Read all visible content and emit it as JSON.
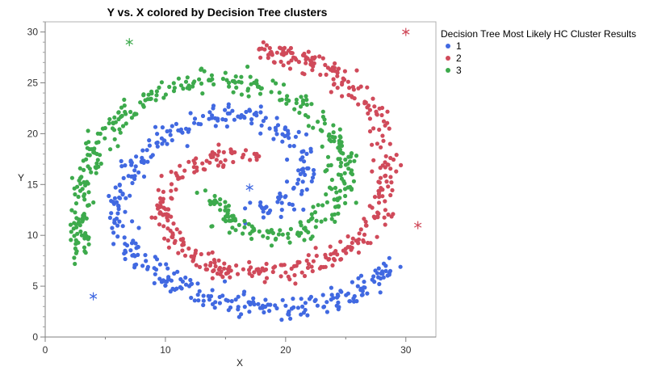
{
  "chart_data": {
    "type": "scatter",
    "title": "Y vs. X colored by Decision Tree clusters",
    "xlabel": "X",
    "ylabel": "Y",
    "xlim": [
      0,
      32.5
    ],
    "ylim": [
      0,
      31
    ],
    "x_ticks": [
      0,
      10,
      20,
      30
    ],
    "y_ticks": [
      0,
      5,
      10,
      15,
      20,
      25,
      30
    ],
    "grid": false,
    "legend": {
      "title": "Decision Tree Most Likely HC Cluster Results",
      "placement": "top-right",
      "entries": [
        "1",
        "2",
        "3"
      ]
    },
    "series": [
      {
        "name": "1",
        "color": "#4169E1",
        "marker": "dot",
        "spiral_path": [
          [
            17.2,
            12.5
          ],
          [
            19.0,
            12.8
          ],
          [
            20.5,
            13.6
          ],
          [
            21.4,
            15.0
          ],
          [
            21.6,
            16.8
          ],
          [
            21.0,
            18.8
          ],
          [
            19.6,
            20.5
          ],
          [
            17.6,
            21.6
          ],
          [
            15.2,
            21.9
          ],
          [
            12.8,
            21.4
          ],
          [
            10.6,
            20.2
          ],
          [
            8.6,
            18.4
          ],
          [
            7.0,
            16.2
          ],
          [
            6.2,
            13.9
          ],
          [
            6.2,
            11.5
          ],
          [
            7.0,
            9.2
          ],
          [
            8.5,
            7.2
          ],
          [
            10.5,
            5.5
          ],
          [
            12.8,
            4.3
          ],
          [
            15.4,
            3.4
          ],
          [
            18.2,
            2.8
          ],
          [
            20.8,
            2.8
          ],
          [
            23.2,
            3.2
          ],
          [
            25.2,
            4.0
          ],
          [
            26.8,
            5.0
          ],
          [
            28.2,
            6.2
          ],
          [
            28.8,
            7.3
          ]
        ],
        "outliers": [
          [
            17,
            14.7
          ],
          [
            4,
            4
          ]
        ]
      },
      {
        "name": "2",
        "color": "#D04A5A",
        "marker": "dot",
        "spiral_path": [
          [
            17.8,
            17.7
          ],
          [
            16.2,
            18.0
          ],
          [
            14.5,
            17.6
          ],
          [
            12.6,
            17.1
          ],
          [
            11.0,
            16.0
          ],
          [
            10.0,
            14.5
          ],
          [
            9.7,
            12.5
          ],
          [
            10.2,
            10.2
          ],
          [
            11.5,
            8.4
          ],
          [
            13.3,
            7.1
          ],
          [
            15.6,
            6.5
          ],
          [
            18.2,
            6.5
          ],
          [
            20.8,
            6.8
          ],
          [
            23.0,
            7.3
          ],
          [
            24.8,
            8.2
          ],
          [
            26.2,
            9.7
          ],
          [
            27.4,
            11.8
          ],
          [
            28.2,
            14.2
          ],
          [
            28.6,
            16.8
          ],
          [
            28.4,
            19.4
          ],
          [
            27.5,
            21.8
          ],
          [
            26.0,
            24.0
          ],
          [
            24.2,
            25.8
          ],
          [
            22.0,
            27.0
          ],
          [
            19.6,
            28.0
          ],
          [
            17.5,
            28.4
          ]
        ],
        "outliers": [
          [
            30,
            30
          ],
          [
            31,
            11
          ]
        ]
      },
      {
        "name": "3",
        "color": "#3DAA4C",
        "marker": "dot",
        "spiral_path": [
          [
            13.8,
            13.6
          ],
          [
            15.2,
            12.0
          ],
          [
            17.0,
            10.4
          ],
          [
            19.2,
            9.8
          ],
          [
            21.4,
            10.4
          ],
          [
            23.2,
            11.9
          ],
          [
            24.4,
            13.8
          ],
          [
            24.8,
            16.0
          ],
          [
            24.6,
            18.4
          ],
          [
            23.6,
            20.6
          ],
          [
            21.8,
            22.6
          ],
          [
            19.4,
            24.1
          ],
          [
            16.8,
            25.0
          ],
          [
            14.0,
            25.3
          ],
          [
            11.2,
            24.8
          ],
          [
            8.4,
            23.5
          ],
          [
            6.0,
            21.4
          ],
          [
            4.2,
            18.8
          ],
          [
            3.2,
            16.0
          ],
          [
            2.7,
            13.0
          ],
          [
            2.7,
            10.2
          ],
          [
            3.2,
            7.8
          ]
        ],
        "outliers": [
          [
            7,
            29
          ]
        ]
      }
    ],
    "points_per_series": 420,
    "noise": 0.55
  }
}
